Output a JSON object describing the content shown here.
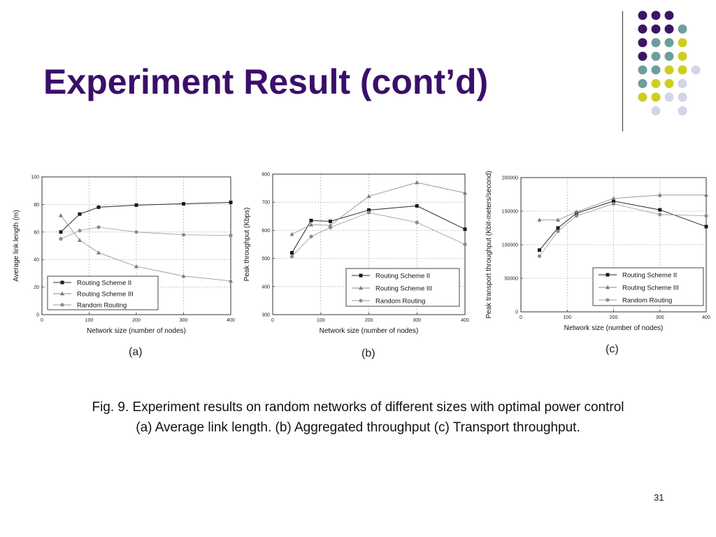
{
  "slide": {
    "title": "Experiment Result (cont’d)",
    "caption_line1": "Fig. 9. Experiment results on random networks of different sizes with optimal power control",
    "caption_line2": "(a) Average link length. (b) Aggregated throughput (c) Transport throughput.",
    "page_number": "31",
    "colors": {
      "title": "#3a0f6b",
      "dot_purple": "#3d1466",
      "dot_teal": "#6d9e9e",
      "dot_yellow": "#cdcf1f",
      "dot_lavender": "#d4d4e8"
    }
  },
  "chart_data": [
    {
      "type": "line",
      "panel_label": "(a)",
      "xlabel": "Network size (number of nodes)",
      "ylabel": "Average link length (m)",
      "xlim": [
        0,
        400
      ],
      "ylim": [
        0,
        100
      ],
      "xticks": [
        0,
        100,
        200,
        300,
        400
      ],
      "yticks": [
        0,
        20,
        40,
        60,
        80,
        100
      ],
      "grid": true,
      "legend_position": "bottom-left",
      "series": [
        {
          "name": "Routing Scheme II",
          "marker": "square",
          "x": [
            40,
            80,
            120,
            200,
            300,
            400
          ],
          "y": [
            60,
            73,
            78,
            79.5,
            80.5,
            81.5
          ]
        },
        {
          "name": "Routing Scheme III",
          "marker": "triangle",
          "x": [
            40,
            80,
            120,
            200,
            300,
            400
          ],
          "y": [
            72,
            54,
            45,
            35,
            28,
            24.5
          ]
        },
        {
          "name": "Random Routing",
          "marker": "circle",
          "x": [
            40,
            80,
            120,
            200,
            300,
            400
          ],
          "y": [
            55,
            61,
            63.5,
            60,
            58,
            57.5
          ]
        }
      ]
    },
    {
      "type": "line",
      "panel_label": "(b)",
      "xlabel": "Network size (number of nodes)",
      "ylabel": "Peak throughput (Kbps)",
      "xlim": [
        0,
        400
      ],
      "ylim": [
        300,
        800
      ],
      "xticks": [
        0,
        100,
        200,
        300,
        400
      ],
      "yticks": [
        300,
        400,
        500,
        600,
        700,
        800
      ],
      "grid": true,
      "legend_position": "bottom-right",
      "series": [
        {
          "name": "Routing Scheme II",
          "marker": "square",
          "x": [
            40,
            80,
            120,
            200,
            300,
            400
          ],
          "y": [
            520,
            635,
            632,
            672,
            687,
            604
          ]
        },
        {
          "name": "Routing Scheme III",
          "marker": "triangle",
          "x": [
            40,
            80,
            120,
            200,
            300,
            400
          ],
          "y": [
            586,
            620,
            618,
            721,
            770,
            733
          ]
        },
        {
          "name": "Random Routing",
          "marker": "circle",
          "x": [
            40,
            80,
            120,
            200,
            300,
            400
          ],
          "y": [
            507,
            578,
            610,
            663,
            628,
            550
          ]
        }
      ]
    },
    {
      "type": "line",
      "panel_label": "(c)",
      "xlabel": "Network size (number of nodes)",
      "ylabel": "Peak transport throughput (Kbit-meters/second)",
      "xlim": [
        0,
        400
      ],
      "ylim": [
        0,
        200000
      ],
      "xticks": [
        0,
        100,
        200,
        300,
        400
      ],
      "yticks": [
        0,
        50000,
        100000,
        150000,
        200000
      ],
      "grid": true,
      "legend_position": "bottom-right",
      "series": [
        {
          "name": "Routing Scheme II",
          "marker": "square",
          "x": [
            40,
            80,
            120,
            200,
            300,
            400
          ],
          "y": [
            92000,
            125000,
            147000,
            165000,
            152000,
            127000
          ]
        },
        {
          "name": "Routing Scheme III",
          "marker": "triangle",
          "x": [
            40,
            80,
            120,
            200,
            300,
            400
          ],
          "y": [
            137000,
            137000,
            149000,
            169000,
            174000,
            174000
          ]
        },
        {
          "name": "Random Routing",
          "marker": "circle",
          "x": [
            40,
            80,
            120,
            200,
            300,
            400
          ],
          "y": [
            83000,
            120000,
            143000,
            161000,
            145000,
            143000
          ]
        }
      ]
    }
  ]
}
